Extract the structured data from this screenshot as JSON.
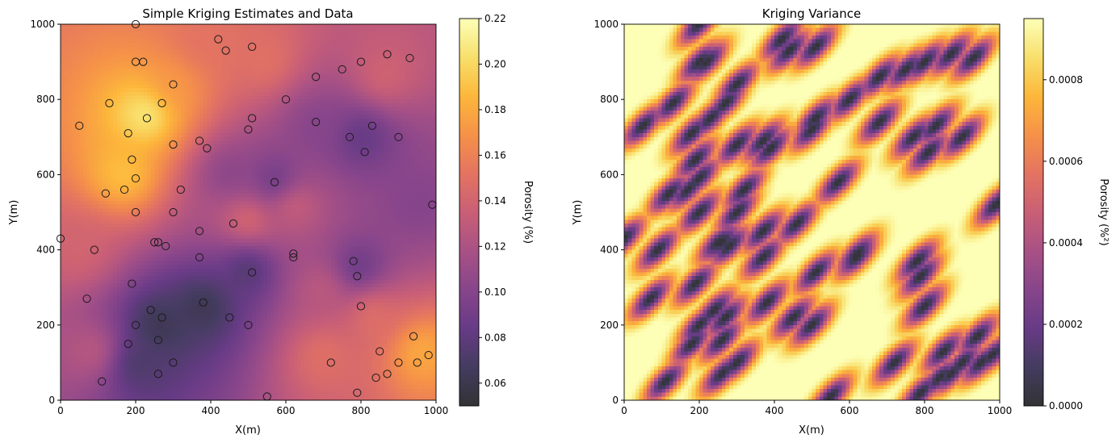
{
  "chart_data": [
    {
      "type": "heatmap",
      "title": "Simple Kriging Estimates and Data",
      "xlabel": "X(m)",
      "ylabel": "Y(m)",
      "xlim": [
        0,
        1000
      ],
      "ylim": [
        0,
        1000
      ],
      "xticks": [
        "0",
        "200",
        "400",
        "600",
        "800",
        "1000"
      ],
      "yticks": [
        "0",
        "200",
        "400",
        "600",
        "800",
        "1000"
      ],
      "colormap": "inferno",
      "colorbar": {
        "label": "Porosity (%)",
        "range": [
          0.05,
          0.22
        ],
        "ticks": [
          "0.06",
          "0.08",
          "0.10",
          "0.12",
          "0.14",
          "0.16",
          "0.18",
          "0.20",
          "0.22"
        ]
      },
      "data_points": [
        [
          200,
          1000
        ],
        [
          200,
          900
        ],
        [
          220,
          900
        ],
        [
          420,
          960
        ],
        [
          440,
          930
        ],
        [
          510,
          940
        ],
        [
          300,
          840
        ],
        [
          130,
          790
        ],
        [
          270,
          790
        ],
        [
          230,
          750
        ],
        [
          50,
          730
        ],
        [
          180,
          710
        ],
        [
          300,
          680
        ],
        [
          370,
          690
        ],
        [
          390,
          670
        ],
        [
          510,
          750
        ],
        [
          500,
          720
        ],
        [
          600,
          800
        ],
        [
          680,
          860
        ],
        [
          750,
          880
        ],
        [
          800,
          900
        ],
        [
          870,
          920
        ],
        [
          930,
          910
        ],
        [
          680,
          740
        ],
        [
          770,
          700
        ],
        [
          830,
          730
        ],
        [
          810,
          660
        ],
        [
          900,
          700
        ],
        [
          190,
          640
        ],
        [
          200,
          590
        ],
        [
          170,
          560
        ],
        [
          120,
          550
        ],
        [
          320,
          560
        ],
        [
          570,
          580
        ],
        [
          200,
          500
        ],
        [
          300,
          500
        ],
        [
          460,
          470
        ],
        [
          990,
          520
        ],
        [
          0,
          430
        ],
        [
          250,
          420
        ],
        [
          260,
          420
        ],
        [
          280,
          410
        ],
        [
          370,
          450
        ],
        [
          90,
          400
        ],
        [
          370,
          380
        ],
        [
          620,
          390
        ],
        [
          620,
          380
        ],
        [
          780,
          370
        ],
        [
          790,
          330
        ],
        [
          510,
          340
        ],
        [
          190,
          310
        ],
        [
          70,
          270
        ],
        [
          380,
          260
        ],
        [
          240,
          240
        ],
        [
          270,
          220
        ],
        [
          450,
          220
        ],
        [
          800,
          250
        ],
        [
          200,
          200
        ],
        [
          500,
          200
        ],
        [
          180,
          150
        ],
        [
          260,
          160
        ],
        [
          300,
          100
        ],
        [
          260,
          70
        ],
        [
          110,
          50
        ],
        [
          550,
          10
        ],
        [
          720,
          100
        ],
        [
          840,
          60
        ],
        [
          850,
          130
        ],
        [
          870,
          70
        ],
        [
          900,
          100
        ],
        [
          940,
          170
        ],
        [
          950,
          100
        ],
        [
          980,
          120
        ],
        [
          790,
          20
        ]
      ],
      "field_hotspots": [
        {
          "x": 230,
          "y": 760,
          "value": 0.21
        },
        {
          "x": 170,
          "y": 600,
          "value": 0.19
        },
        {
          "x": 300,
          "y": 830,
          "value": 0.17
        },
        {
          "x": 960,
          "y": 130,
          "value": 0.18
        },
        {
          "x": 830,
          "y": 230,
          "value": 0.15
        },
        {
          "x": 700,
          "y": 120,
          "value": 0.15
        },
        {
          "x": 500,
          "y": 480,
          "value": 0.15
        },
        {
          "x": 620,
          "y": 520,
          "value": 0.14
        },
        {
          "x": 540,
          "y": 900,
          "value": 0.15
        },
        {
          "x": 860,
          "y": 860,
          "value": 0.14
        },
        {
          "x": 50,
          "y": 400,
          "value": 0.14
        },
        {
          "x": 90,
          "y": 130,
          "value": 0.13
        },
        {
          "x": 380,
          "y": 950,
          "value": 0.15
        },
        {
          "x": 700,
          "y": 300,
          "value": 0.13
        },
        {
          "x": 260,
          "y": 200,
          "value": 0.06
        },
        {
          "x": 380,
          "y": 250,
          "value": 0.06
        },
        {
          "x": 500,
          "y": 350,
          "value": 0.07
        },
        {
          "x": 200,
          "y": 100,
          "value": 0.07
        },
        {
          "x": 570,
          "y": 580,
          "value": 0.08
        },
        {
          "x": 800,
          "y": 700,
          "value": 0.08
        },
        {
          "x": 790,
          "y": 350,
          "value": 0.08
        },
        {
          "x": 450,
          "y": 600,
          "value": 0.1
        },
        {
          "x": 680,
          "y": 730,
          "value": 0.1
        },
        {
          "x": 950,
          "y": 520,
          "value": 0.1
        }
      ]
    },
    {
      "type": "heatmap",
      "title": "Kriging Variance",
      "xlabel": "X(m)",
      "ylabel": "Y(m)",
      "xlim": [
        0,
        1000
      ],
      "ylim": [
        0,
        1000
      ],
      "xticks": [
        "0",
        "200",
        "400",
        "600",
        "800",
        "1000"
      ],
      "yticks": [
        "0",
        "200",
        "400",
        "600",
        "800",
        "1000"
      ],
      "colormap": "inferno",
      "colorbar": {
        "label": "Porosity (%²)",
        "range": [
          0,
          0.00095
        ],
        "ticks": [
          "0.0000",
          "0.0002",
          "0.0004",
          "0.0006",
          "0.0008"
        ]
      },
      "anisotropy": {
        "major_direction_deg": 45,
        "major_range": 100,
        "minor_range": 40
      }
    }
  ]
}
